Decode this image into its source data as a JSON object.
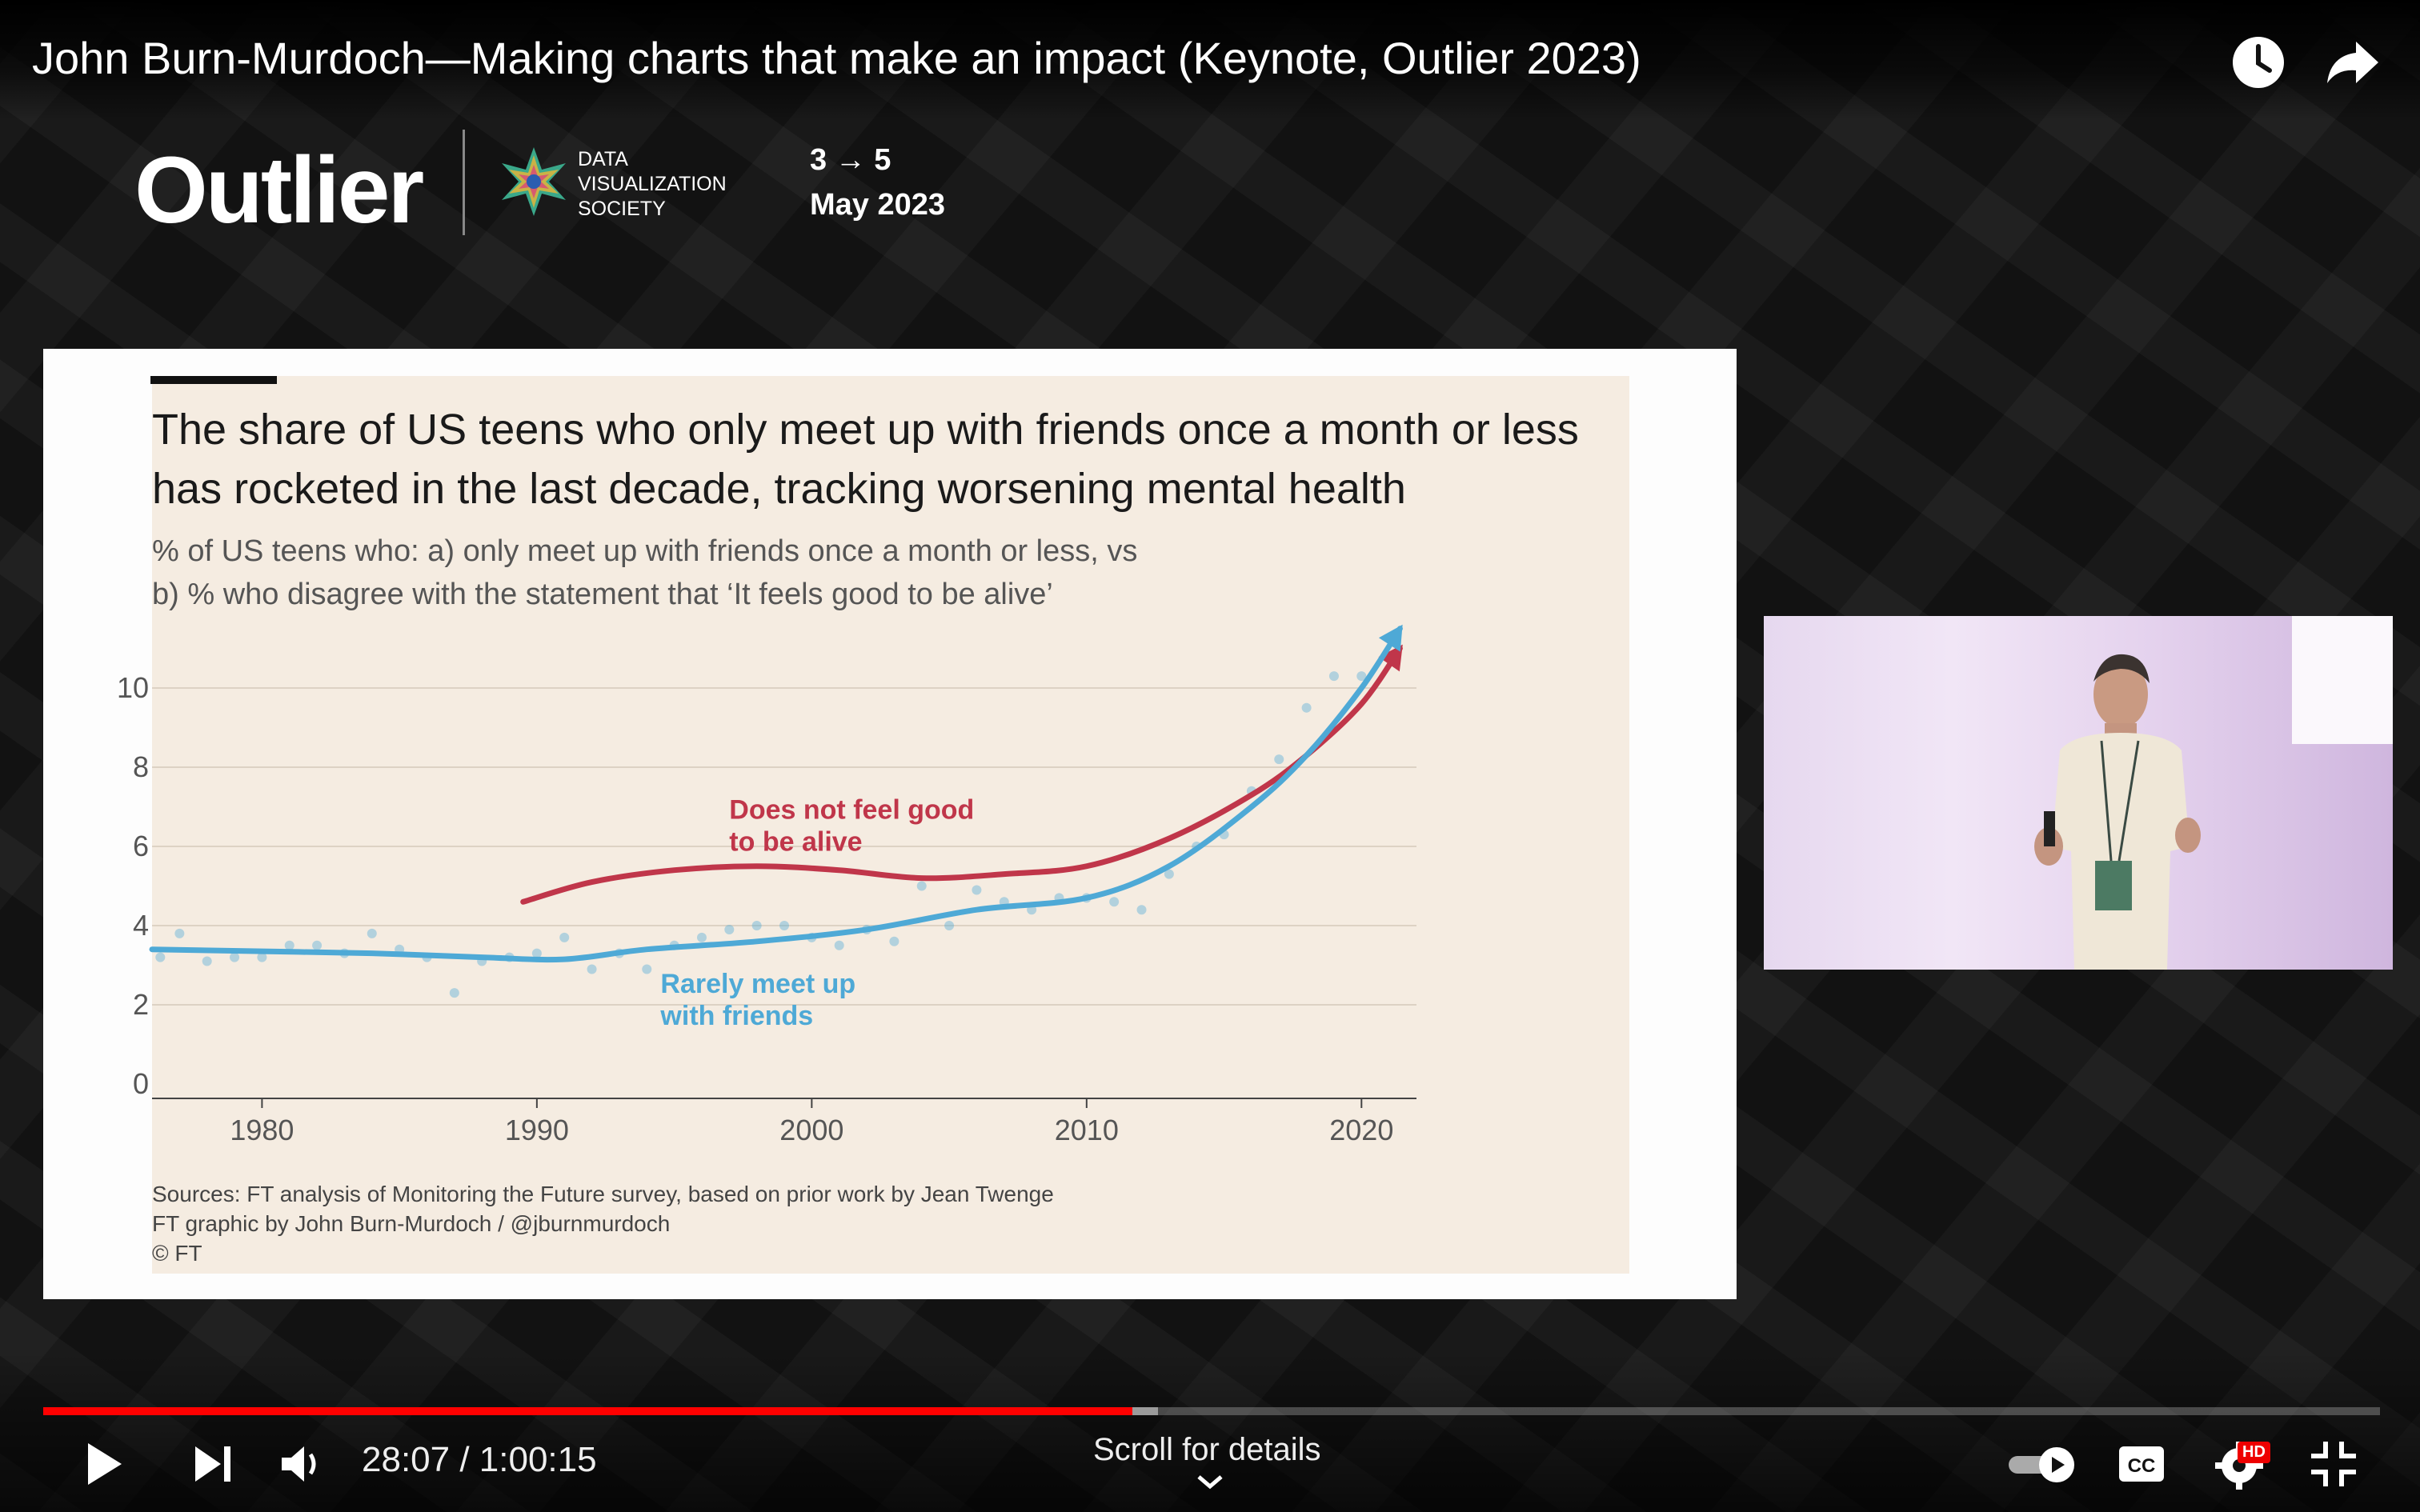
{
  "player": {
    "video_title": "John Burn-Murdoch—Making charts that make an impact (Keynote, Outlier 2023)",
    "time_current": "28:07",
    "time_separator": " / ",
    "time_total": "1:00:15",
    "scroll_hint": "Scroll for details",
    "played_fraction": 0.466,
    "buffered_fraction": 0.477,
    "hd_badge": "HD",
    "icons": [
      "watch-later-icon",
      "share-icon",
      "play-icon",
      "next-icon",
      "volume-icon",
      "autoplay-toggle-icon",
      "captions-icon",
      "settings-icon",
      "exit-fullscreen-icon",
      "chevron-down-icon"
    ]
  },
  "slide_header": {
    "outlier_logo": "Outlier",
    "dvs_line1": "DATA",
    "dvs_line2": "VISUALIZATION",
    "dvs_line3": "SOCIETY",
    "dates_line1": "3 → 5",
    "dates_line2": "May 2023"
  },
  "chart_data": {
    "type": "line",
    "title": "The share of US teens who only meet up with friends once a month or less has rocketed in the last decade, tracking worsening mental health",
    "title_line1": "The share of US teens who only meet up with friends once a month or less",
    "title_line2": "has rocketed in the last decade, tracking worsening mental health",
    "subtitle_line1": "% of US teens who: a) only meet up with friends once a month or less, vs",
    "subtitle_line2": "b) % who disagree with the statement that ‘It feels good to be alive’",
    "xlim": [
      1976,
      2022
    ],
    "ylim": [
      0,
      10
    ],
    "xticks": [
      1980,
      1990,
      2000,
      2010,
      2020
    ],
    "yticks": [
      0,
      2,
      4,
      6,
      8,
      10
    ],
    "grid": true,
    "series": [
      {
        "name": "Does not feel good to be alive",
        "label_line1": "Does not feel good",
        "label_line2": "to be alive",
        "color": "#c0364a",
        "label_at": [
          1997,
          6.7
        ],
        "x": [
          1989.5,
          1992,
          1995,
          1998,
          2001,
          2004,
          2007,
          2010,
          2013,
          2016,
          2018,
          2020,
          2021.4
        ],
        "y": [
          4.6,
          5.1,
          5.4,
          5.5,
          5.4,
          5.2,
          5.3,
          5.5,
          6.2,
          7.3,
          8.3,
          9.6,
          11.0
        ]
      },
      {
        "name": "Rarely meet up with friends",
        "label_line1": "Rarely meet up",
        "label_line2": "with friends",
        "color": "#4ea9d6",
        "label_at": [
          1994.5,
          2.3
        ],
        "x": [
          1976,
          1980,
          1984,
          1988,
          1991,
          1994,
          1998,
          2002,
          2006,
          2010,
          2013,
          2016,
          2018,
          2020,
          2021.4
        ],
        "y": [
          3.4,
          3.35,
          3.3,
          3.2,
          3.15,
          3.4,
          3.6,
          3.9,
          4.4,
          4.7,
          5.5,
          7.0,
          8.3,
          10.0,
          11.5
        ],
        "points": [
          [
            1976.3,
            3.2
          ],
          [
            1977,
            3.8
          ],
          [
            1978,
            3.1
          ],
          [
            1979,
            3.2
          ],
          [
            1980,
            3.2
          ],
          [
            1981,
            3.5
          ],
          [
            1982,
            3.5
          ],
          [
            1983,
            3.3
          ],
          [
            1984,
            3.8
          ],
          [
            1985,
            3.4
          ],
          [
            1986,
            3.2
          ],
          [
            1987,
            2.3
          ],
          [
            1988,
            3.1
          ],
          [
            1989,
            3.2
          ],
          [
            1990,
            3.3
          ],
          [
            1991,
            3.7
          ],
          [
            1992,
            2.9
          ],
          [
            1993,
            3.3
          ],
          [
            1994,
            2.9
          ],
          [
            1995,
            3.5
          ],
          [
            1996,
            3.7
          ],
          [
            1997,
            3.9
          ],
          [
            1998,
            4.0
          ],
          [
            1999,
            4.0
          ],
          [
            2000,
            3.7
          ],
          [
            2001,
            3.5
          ],
          [
            2002,
            3.9
          ],
          [
            2003,
            3.6
          ],
          [
            2004,
            5.0
          ],
          [
            2005,
            4.0
          ],
          [
            2006,
            4.9
          ],
          [
            2007,
            4.6
          ],
          [
            2008,
            4.4
          ],
          [
            2009,
            4.7
          ],
          [
            2010,
            4.7
          ],
          [
            2011,
            4.6
          ],
          [
            2012,
            4.4
          ],
          [
            2013,
            5.3
          ],
          [
            2014,
            6.0
          ],
          [
            2015,
            6.3
          ],
          [
            2016,
            7.4
          ],
          [
            2017,
            8.2
          ],
          [
            2018,
            9.5
          ],
          [
            2019,
            10.3
          ],
          [
            2020,
            10.3
          ]
        ]
      }
    ],
    "sources_line1": "Sources: FT analysis of Monitoring the Future survey, based on prior work by Jean Twenge",
    "sources_line2": "FT graphic by John Burn-Murdoch / @jburnmurdoch",
    "sources_line3": "© FT"
  }
}
